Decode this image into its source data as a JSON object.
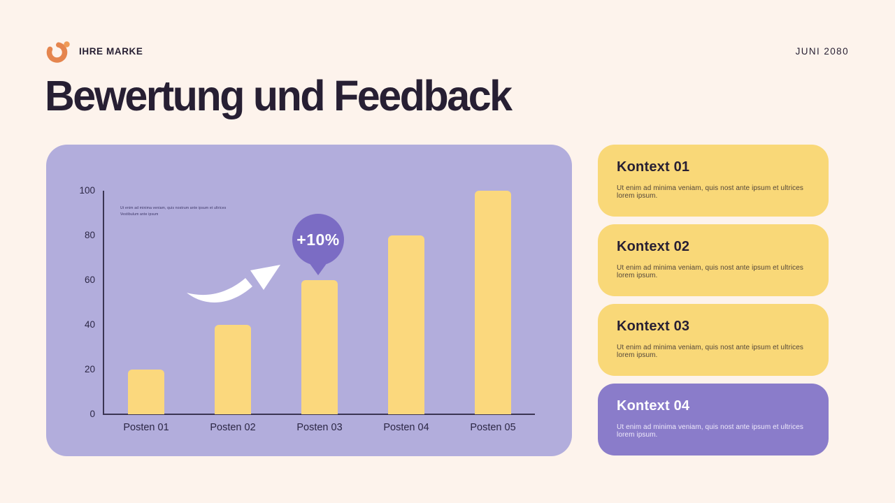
{
  "header": {
    "brand": "IHRE MARKE",
    "date": "JUNI 2080"
  },
  "title": "Bewertung und Feedback",
  "chart_data": {
    "type": "bar",
    "title": "",
    "xlabel": "",
    "ylabel": "",
    "categories": [
      "Posten 01",
      "Posten 02",
      "Posten 03",
      "Posten 04",
      "Posten 05"
    ],
    "values": [
      20,
      40,
      60,
      80,
      100
    ],
    "y_ticks": [
      100,
      80,
      60,
      40,
      20,
      0
    ],
    "ylim": [
      0,
      100
    ],
    "grid": "off",
    "legend": "none",
    "annotation_badge": "+10%",
    "note": "Ut enim ad minima veniam, quis nostrum  ante ipsum et ultrices\nVestibulum ante ipsum"
  },
  "cards": [
    {
      "title": "Kontext 01",
      "body": "Ut enim ad minima veniam, quis nost ante ipsum et ultrices lorem ipsum."
    },
    {
      "title": "Kontext 02",
      "body": "Ut enim ad minima veniam, quis nost ante ipsum et ultrices lorem ipsum."
    },
    {
      "title": "Kontext 03",
      "body": "Ut enim ad minima veniam, quis nost ante ipsum et ultrices lorem ipsum."
    },
    {
      "title": "Kontext 04",
      "body": "Ut enim ad minima veniam, quis nost ante ipsum et ultrices lorem ipsum."
    }
  ],
  "colors": {
    "background": "#fdf3ec",
    "ink": "#271f33",
    "panel_lavender": "#b2addc",
    "bar_yellow": "#fbd87d",
    "badge_purple": "#7b6cc4",
    "card_yellow": "#f9d878",
    "card_purple": "#8a7cca",
    "accent_orange": "#e5854e",
    "accent_orange_light": "#ef9b57",
    "axis_dark": "#3b3553"
  }
}
